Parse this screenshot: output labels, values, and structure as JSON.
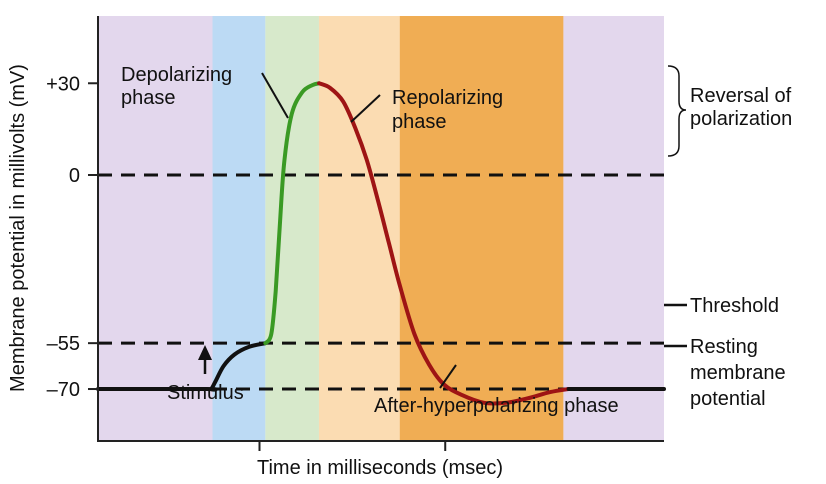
{
  "chart_data": {
    "type": "line",
    "title": "",
    "xlabel": "Time in milliseconds (msec)",
    "ylabel": "Membrane potential in millivolts (mV)",
    "ylim": [
      -87,
      52
    ],
    "y_ticks": [
      {
        "value": 30,
        "label": "+30"
      },
      {
        "value": 0,
        "label": "0"
      },
      {
        "value": -55,
        "label": "–55"
      },
      {
        "value": -70,
        "label": "–70"
      }
    ],
    "x_ticks": [
      0.64,
      3.17
    ],
    "xlim": [
      -1.56,
      6.15
    ],
    "reference_lines": [
      {
        "value": 0,
        "style": "dashed"
      },
      {
        "value": -55,
        "style": "dashed",
        "label": "Threshold"
      },
      {
        "value": -70,
        "style": "dashed",
        "label": "Resting membrane potential"
      }
    ],
    "bands": [
      {
        "x0": -1.56,
        "x1": 0.0,
        "color": "#e3d7ed"
      },
      {
        "x0": 0.0,
        "x1": 0.72,
        "color": "#bcdaf4"
      },
      {
        "x0": 0.72,
        "x1": 1.45,
        "color": "#d7e9cb"
      },
      {
        "x0": 1.45,
        "x1": 2.55,
        "color": "#fbdcb2"
      },
      {
        "x0": 2.55,
        "x1": 4.78,
        "color": "#f0ad54"
      },
      {
        "x0": 4.78,
        "x1": 6.15,
        "color": "#e3d7ed"
      }
    ],
    "series": [
      {
        "color": "#111111",
        "points": [
          [
            -1.56,
            -70
          ],
          [
            -0.08,
            -70
          ],
          [
            -0.02,
            -70
          ],
          [
            0.04,
            -67.5
          ],
          [
            0.15,
            -62.5
          ],
          [
            0.3,
            -58.7
          ],
          [
            0.5,
            -56.2
          ],
          [
            0.72,
            -55
          ]
        ]
      },
      {
        "color": "#3a9a24",
        "points": [
          [
            0.72,
            -55
          ],
          [
            0.8,
            -52
          ],
          [
            0.86,
            -38
          ],
          [
            0.92,
            -15
          ],
          [
            0.98,
            5
          ],
          [
            1.08,
            20
          ],
          [
            1.22,
            27
          ],
          [
            1.36,
            29.4
          ],
          [
            1.45,
            30
          ]
        ]
      },
      {
        "color": "#9e1414",
        "points": [
          [
            1.45,
            30
          ],
          [
            1.6,
            28.5
          ],
          [
            1.78,
            24
          ],
          [
            1.95,
            15
          ],
          [
            2.1,
            5
          ],
          [
            2.25,
            -8
          ],
          [
            2.4,
            -22
          ],
          [
            2.55,
            -36
          ],
          [
            2.75,
            -52
          ],
          [
            2.95,
            -62
          ],
          [
            3.15,
            -68.5
          ],
          [
            3.4,
            -72
          ],
          [
            3.7,
            -74.5
          ],
          [
            4.0,
            -74.5
          ],
          [
            4.3,
            -73
          ],
          [
            4.6,
            -71
          ],
          [
            4.85,
            -70
          ]
        ]
      },
      {
        "color": "#111111",
        "points": [
          [
            4.85,
            -70
          ],
          [
            6.15,
            -70
          ]
        ]
      }
    ],
    "annotations": [
      {
        "text": [
          "Depolarizing",
          "phase"
        ]
      },
      {
        "text": [
          "Repolarizing",
          "phase"
        ]
      },
      {
        "text": [
          "Reversal of",
          "polarization"
        ]
      },
      {
        "text": [
          "Threshold"
        ]
      },
      {
        "text": [
          "Resting",
          "membrane",
          "potential"
        ]
      },
      {
        "text": [
          "Stimulus"
        ]
      },
      {
        "text": [
          "After-hyperpolarizing phase"
        ]
      }
    ]
  }
}
